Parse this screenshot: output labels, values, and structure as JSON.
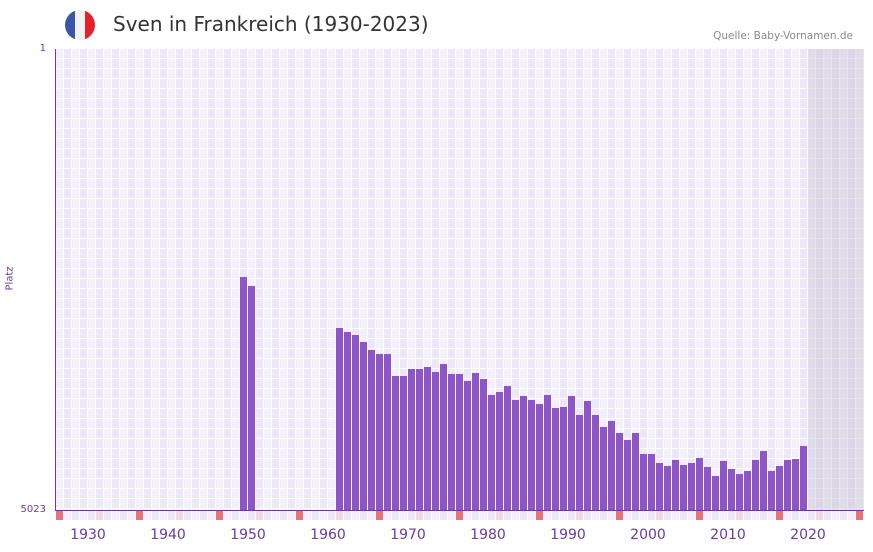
{
  "header": {
    "title": "Sven in Frankreich (1930-2023)",
    "source": "Quelle: Baby-Vornamen.de",
    "flag_icon": "france-flag",
    "flag_colors": [
      "#3a56a8",
      "#f2f2f2",
      "#e5202a"
    ]
  },
  "chart_data": {
    "type": "bar",
    "title": "Sven in Frankreich (1930-2023)",
    "xlabel": "",
    "ylabel": "Platz",
    "ylim": [
      5023,
      1
    ],
    "y_ticks": [
      "1",
      "5023"
    ],
    "x_range": [
      1928,
      2028
    ],
    "x_ticks": [
      "1930",
      "1940",
      "1950",
      "1960",
      "1970",
      "1980",
      "1990",
      "2000",
      "2010",
      "2020"
    ],
    "shaded_from_year": 2022,
    "bar_color": "#8e55c8",
    "years": [
      1951,
      1952,
      1963,
      1964,
      1965,
      1966,
      1967,
      1968,
      1969,
      1970,
      1971,
      1972,
      1973,
      1974,
      1975,
      1976,
      1977,
      1978,
      1979,
      1980,
      1981,
      1982,
      1983,
      1984,
      1985,
      1986,
      1987,
      1988,
      1989,
      1990,
      1991,
      1992,
      1993,
      1994,
      1995,
      1996,
      1997,
      1998,
      1999,
      2000,
      2001,
      2002,
      2003,
      2004,
      2005,
      2006,
      2007,
      2008,
      2009,
      2010,
      2011,
      2012,
      2013,
      2014,
      2015,
      2016,
      2017,
      2018,
      2019,
      2020,
      2021
    ],
    "ranks": [
      2484,
      2582,
      3040,
      3083,
      3116,
      3192,
      3280,
      3323,
      3323,
      3563,
      3563,
      3486,
      3486,
      3464,
      3519,
      3432,
      3541,
      3541,
      3617,
      3530,
      3595,
      3769,
      3737,
      3671,
      3824,
      3780,
      3824,
      3867,
      3769,
      3911,
      3900,
      3780,
      3987,
      3835,
      3987,
      4118,
      4053,
      4183,
      4260,
      4183,
      4412,
      4412,
      4510,
      4543,
      4477,
      4532,
      4510,
      4456,
      4554,
      4652,
      4488,
      4575,
      4630,
      4597,
      4477,
      4379,
      4597,
      4543,
      4477,
      4466,
      4325
    ]
  }
}
